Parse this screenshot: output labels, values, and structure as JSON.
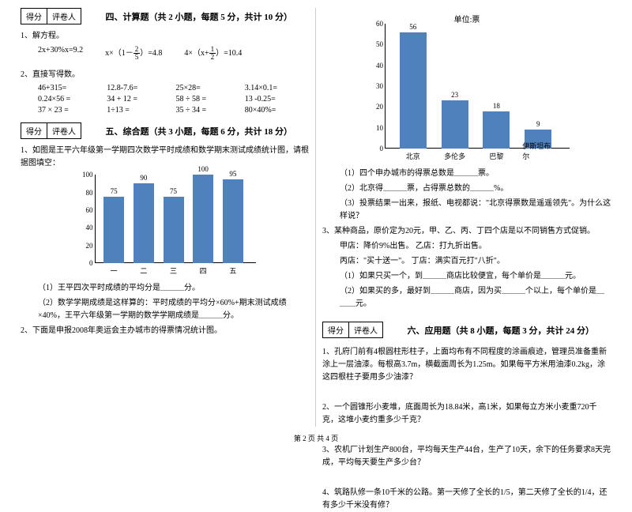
{
  "score_box": {
    "a": "得分",
    "b": "评卷人"
  },
  "sec4": {
    "title": "四、计算题（共 2 小题，每题 5 分，共计 10 分）",
    "q1": "1、解方程。",
    "eq1": "2x+30%x=9.2",
    "eq2a": "x×（1－",
    "eq2b": "）=4.8",
    "eq3a": "4×（x+",
    "eq3b": "）=10.4",
    "frac25n": "2",
    "frac25d": "5",
    "frac12n": "1",
    "frac12d": "2",
    "q2": "2、直接写得数。",
    "calc": [
      "46+315=",
      "12.8-7.6=",
      "25×28=",
      "3.14×0.1=",
      "0.24×56 =",
      "34 + 12 =",
      "58 ÷ 58 =",
      "13 -0.25=",
      "37 × 23 =",
      "1÷13 =",
      "35 ÷ 34 =",
      "80×40%="
    ]
  },
  "sec5": {
    "title": "五、综合题（共 3 小题，每题 6 分，共计 18 分）",
    "q1": "1、如图是王平六年级第一学期四次数学平时成绩和数学期末测试成绩统计图，请根据图填空：",
    "chart1": {
      "yticks": [
        0,
        20,
        40,
        60,
        80,
        100
      ],
      "bars": [
        {
          "label": "一",
          "val": 75
        },
        {
          "label": "二",
          "val": 90
        },
        {
          "label": "三",
          "val": 75
        },
        {
          "label": "四",
          "val": 100
        },
        {
          "label": "五",
          "val": 95
        }
      ],
      "bar_color": "#4f81bd",
      "ymax": 100
    },
    "q1a": "（1）王平四次平时成绩的平均分是＿＿＿分。",
    "q1b": "（2）数学学期成绩是这样算的：平时成绩的平均分×60%+期末测试成绩×40%，王平六年级第一学期的数学学期成绩是＿＿＿分。",
    "q2": "2、下面是申报2008年奥运会主办城市的得票情况统计图。"
  },
  "chart2": {
    "unit": "单位:票",
    "yticks": [
      0,
      10,
      20,
      30,
      40,
      50,
      60
    ],
    "bars": [
      {
        "label": "北京",
        "val": 56
      },
      {
        "label": "多伦多",
        "val": 23
      },
      {
        "label": "巴黎",
        "val": 18
      },
      {
        "label": "伊斯坦布尔",
        "val": 9
      }
    ],
    "bar_color": "#4f81bd",
    "ymax": 60
  },
  "sec5b": {
    "a": "（1）四个申办城市的得票总数是＿＿＿票。",
    "b": "（2）北京得＿＿＿票，占得票总数的＿＿＿%。",
    "c": "（3）投票结果一出来，报纸、电视都说：\"北京得票数是遥遥领先\"。为什么这样说？",
    "q3": "3、某种商品，原价定为20元，甲、乙、丙、丁四个店是以不同销售方式促销。",
    "q3a": "甲店：降价9%出售。    乙店：打九折出售。",
    "q3b": "丙店：\"买十送一\"。    丁店：满实百元打\"八折\"。",
    "q3c": "（1）如果只买一个，到＿＿＿商店比较便宜，每个单价是＿＿＿元。",
    "q3d": "（2）如果买的多，最好到＿＿＿商店，因为买＿＿＿个以上，每个单价是＿＿＿元。"
  },
  "sec6": {
    "title": "六、应用题（共 8 小题，每题 3 分，共计 24 分）",
    "q1": "1、孔府门前有4根圆柱形柱子，上面均布有不同程度的涂画痕迹，管理员准备重新涂上一层油漆。每根高3.7m，横截面周长为1.25m。如果每平方米用油漆0.2kg，涂这四根柱子要用多少油漆？",
    "q2": "2、一个圆锥形小麦堆，底面周长为18.84米，高1米，如果每立方米小麦重720千克，这堆小麦约重多少千克？",
    "q3": "3、农机厂计划生产800台，平均每天生产44台，生产了10天，余下的任务要求8天完成，平均每天要生产多少台？",
    "q4": "4、筑路队修一条10千米的公路。第一天修了全长的1/5，第二天修了全长的1/4，还有多少千米没有修？"
  },
  "footer": "第 2 页 共 4 页"
}
